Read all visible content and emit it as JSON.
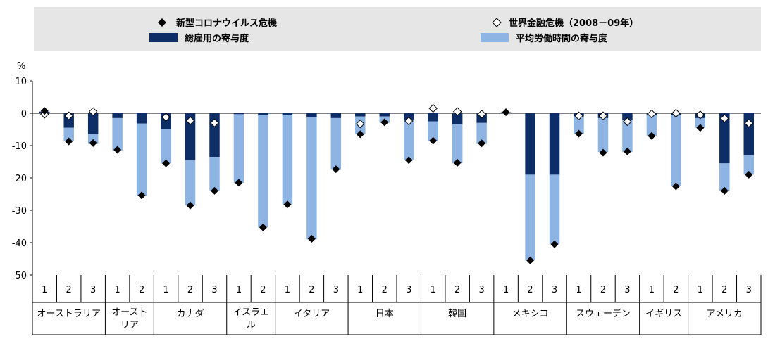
{
  "chart_data": {
    "type": "bar",
    "unit_label": "%",
    "ylim": [
      -50,
      10
    ],
    "yticks": [
      10,
      0,
      -10,
      -20,
      -30,
      -40,
      -50
    ],
    "colors": {
      "employment": "#0d2d66",
      "hours": "#8eb4e3",
      "covid_marker": "#000000",
      "gfc_marker": "#ffffff",
      "legend_bg": "#e6e6e6"
    },
    "legend": {
      "covid": "新型コロナウイルス危機",
      "gfc": "世界金融危機（2008－09年）",
      "employment": "総雇用の寄与度",
      "hours": "平均労働時間の寄与度"
    },
    "countries": [
      {
        "name": "オーストラリア",
        "quarters": [
          "1",
          "2",
          "3"
        ]
      },
      {
        "name": "オースト\nリア",
        "quarters": [
          "1",
          "2"
        ]
      },
      {
        "name": "カナダ",
        "quarters": [
          "1",
          "2",
          "3"
        ]
      },
      {
        "name": "イスラエ\nル",
        "quarters": [
          "1",
          "2"
        ]
      },
      {
        "name": "イタリア",
        "quarters": [
          "1",
          "2",
          "3"
        ]
      },
      {
        "name": "日本",
        "quarters": [
          "1",
          "2",
          "3"
        ]
      },
      {
        "name": "韓国",
        "quarters": [
          "1",
          "2",
          "3"
        ]
      },
      {
        "name": "メキシコ",
        "quarters": [
          "1",
          "2",
          "3"
        ]
      },
      {
        "name": "スウェーデン",
        "quarters": [
          "1",
          "2",
          "3"
        ]
      },
      {
        "name": "イギリス",
        "quarters": [
          "1",
          "2"
        ]
      },
      {
        "name": "アメリカ",
        "quarters": [
          "1",
          "2",
          "3"
        ]
      }
    ],
    "series": [
      {
        "name": "総雇用の寄与度",
        "values": [
          0.5,
          -4.5,
          -6.5,
          -1.5,
          -3.2,
          -5.0,
          -14.5,
          -13.5,
          -0.3,
          -0.5,
          -0.5,
          -1.2,
          -1.5,
          -1.0,
          -1.0,
          -2.0,
          -2.5,
          -3.5,
          -3.0,
          0.3,
          -19.0,
          -19.0,
          -1.0,
          -1.5,
          -2.0,
          -0.5,
          -0.5,
          -1.5,
          -15.5,
          -13.0
        ]
      },
      {
        "name": "平均労働時間の寄与度",
        "values": [
          0.0,
          -4.0,
          -3.0,
          -10.0,
          -22.3,
          -10.5,
          -14.0,
          -10.5,
          -21.2,
          -34.8,
          -27.7,
          -37.8,
          -16.0,
          -5.5,
          -2.0,
          -12.5,
          -6.0,
          -12.0,
          -6.5,
          0.0,
          -26.5,
          -21.5,
          -5.5,
          -10.5,
          -10.0,
          -6.5,
          -22.0,
          -3.0,
          -8.5,
          -6.0
        ]
      },
      {
        "name": "新型コロナウイルス危機",
        "values": [
          0.7,
          -8.7,
          -9.2,
          -11.3,
          -25.4,
          -15.5,
          -28.5,
          -24.0,
          -21.5,
          -35.3,
          -28.2,
          -38.8,
          -17.3,
          -6.5,
          -2.8,
          -14.5,
          -8.5,
          -15.3,
          -9.3,
          0.3,
          -45.5,
          -40.5,
          -6.3,
          -12.2,
          -11.8,
          -7.0,
          -22.6,
          -4.5,
          -24.0,
          -19.0
        ]
      },
      {
        "name": "世界金融危機（2008－09年）",
        "values": [
          -0.3,
          -0.8,
          0.5,
          null,
          null,
          -1.2,
          -2.3,
          -3.0,
          null,
          null,
          null,
          null,
          null,
          -3.3,
          null,
          -2.4,
          1.5,
          0.5,
          -0.3,
          null,
          null,
          null,
          -0.8,
          -0.8,
          -2.6,
          -0.2,
          0.0,
          -0.5,
          -1.6,
          -3.1
        ]
      }
    ]
  }
}
